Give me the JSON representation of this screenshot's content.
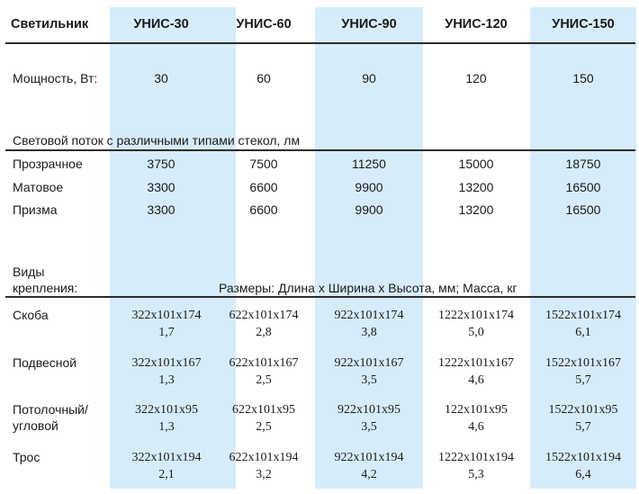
{
  "header": {
    "label": "Светильник",
    "models": [
      "УНИС-30",
      "УНИС-60",
      "УНИС-90",
      "УНИС-120",
      "УНИС-150"
    ]
  },
  "power": {
    "label": "Мощность, Вт:",
    "values": [
      "30",
      "60",
      "90",
      "120",
      "150"
    ]
  },
  "flux": {
    "title": "Световой поток с различными типами стекол, лм",
    "rows": [
      {
        "label": "Прозрачное",
        "values": [
          "3750",
          "7500",
          "11250",
          "15000",
          "18750"
        ]
      },
      {
        "label": "Матовое",
        "values": [
          "3300",
          "6600",
          "9900",
          "13200",
          "16500"
        ]
      },
      {
        "label": "Призма",
        "values": [
          "3300",
          "6600",
          "9900",
          "13200",
          "16500"
        ]
      }
    ]
  },
  "mounting": {
    "label_line1": "Виды",
    "label_line2": "крепления:",
    "title": "Размеры: Длина х Ширина х Высота, мм; Масса, кг",
    "rows": [
      {
        "label_line1": "Скоба",
        "label_line2": "",
        "dims": [
          "322x101x174",
          "622x101x174",
          "922x101x174",
          "1222x101x174",
          "1522x101x174"
        ],
        "mass": [
          "1,7",
          "2,8",
          "3,8",
          "5,0",
          "6,1"
        ]
      },
      {
        "label_line1": "Подвесной",
        "label_line2": "",
        "dims": [
          "322x101x167",
          "622x101x167",
          "922x101x167",
          "1222x101x167",
          "1522x101x167"
        ],
        "mass": [
          "1,3",
          "2,5",
          "3,5",
          "4,6",
          "5,7"
        ]
      },
      {
        "label_line1": "Потолочный/",
        "label_line2": "угловой",
        "dims": [
          "322x101x95",
          "622x101x95",
          "922x101x95",
          "122x101x95",
          "1522x101x95"
        ],
        "mass": [
          "1,3",
          "2,5",
          "3,5",
          "4,6",
          "5,7"
        ]
      },
      {
        "label_line1": "Трос",
        "label_line2": "",
        "dims": [
          "322x101x194",
          "622x101x194",
          "922x101x194",
          "1222x101x194",
          "1522x101x194"
        ],
        "mass": [
          "2,1",
          "3,2",
          "4,2",
          "5,3",
          "6,4"
        ]
      }
    ]
  },
  "colors": {
    "highlight": "#d6ecfa",
    "rule": "#2d2d2d",
    "text": "#1a1a1a"
  }
}
